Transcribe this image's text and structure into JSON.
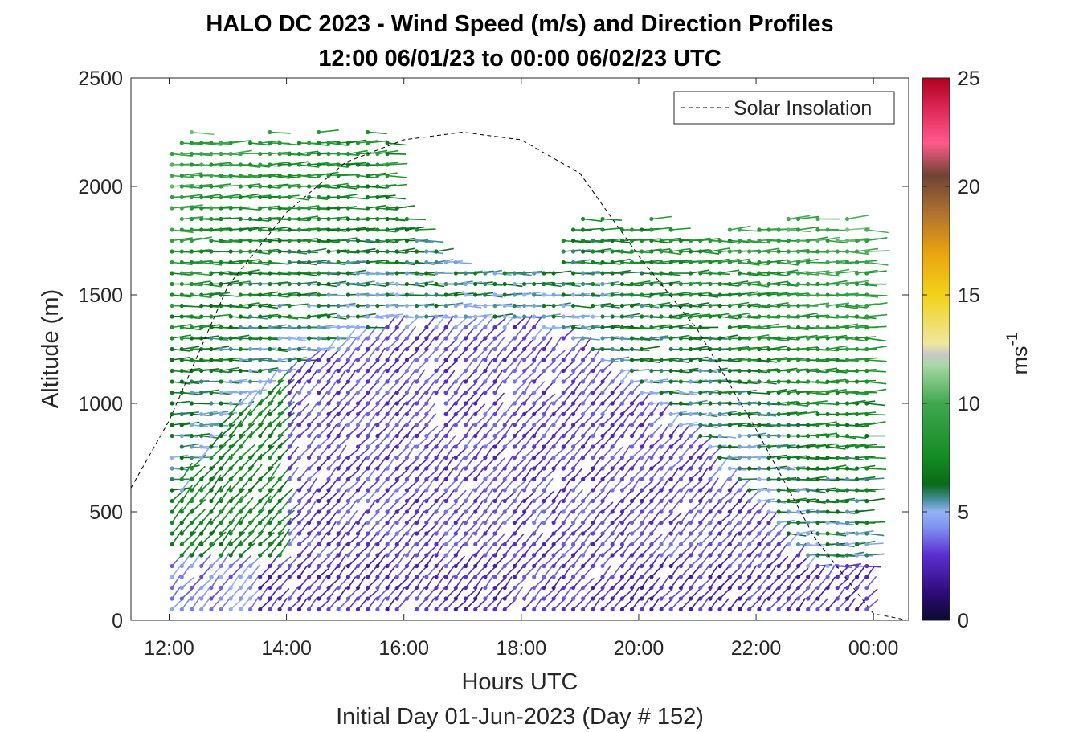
{
  "chart_data": {
    "type": "wind-barb-profile",
    "title": "HALO DC 2023 - Wind Speed (m/s) and Direction Profiles",
    "subtitle": "12:00 06/01/23 to 00:00 06/02/23  UTC",
    "xlabel": "Hours UTC",
    "xlabel2": "Initial Day 01-Jun-2023 (Day # 152)",
    "ylabel": "Altitude (m)",
    "x_tick_labels": [
      "12:00",
      "14:00",
      "16:00",
      "18:00",
      "20:00",
      "22:00",
      "00:00"
    ],
    "x_tick_hours": [
      12,
      14,
      16,
      18,
      20,
      22,
      24
    ],
    "xlim_hours": [
      11.35,
      24.6
    ],
    "y_ticks": [
      0,
      500,
      1000,
      1500,
      2000,
      2500
    ],
    "ylim": [
      0,
      2500
    ],
    "colorbar": {
      "label": "ms",
      "label_exponent": "-1",
      "range": [
        0,
        25
      ],
      "ticks": [
        0,
        5,
        10,
        15,
        20,
        25
      ]
    },
    "legend": {
      "position": "top-right",
      "entries": [
        {
          "label": "Solar Insolation",
          "style": "dashed",
          "color": "#000000"
        }
      ]
    },
    "solar_insolation": {
      "description_points_hours_altitude": [
        [
          11.35,
          610
        ],
        [
          12.0,
          920
        ],
        [
          13.0,
          1540
        ],
        [
          14.0,
          1880
        ],
        [
          15.0,
          2110
        ],
        [
          16.0,
          2215
        ],
        [
          17.0,
          2250
        ],
        [
          18.0,
          2215
        ],
        [
          19.0,
          2060
        ],
        [
          20.0,
          1680
        ],
        [
          21.0,
          1340
        ],
        [
          22.0,
          880
        ],
        [
          23.0,
          380
        ],
        [
          24.0,
          30
        ],
        [
          24.6,
          0
        ]
      ]
    },
    "profiles": {
      "start_hour": 12.05,
      "interval_hours": 0.1667,
      "count": 72,
      "levels_m": [
        50,
        2250
      ],
      "level_spacing_m": 50,
      "notes": "Wind speeds roughly 2-4 m/s in the lower layer (purple/blue), increasing to 6-9 m/s aloft (green); data absent above ~1700 m around 17:00-18:30."
    }
  }
}
